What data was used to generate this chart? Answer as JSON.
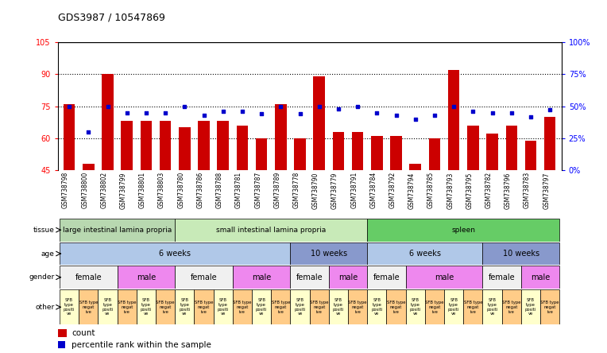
{
  "title": "GDS3987 / 10547869",
  "samples": [
    "GSM738798",
    "GSM738800",
    "GSM738802",
    "GSM738799",
    "GSM738801",
    "GSM738803",
    "GSM738780",
    "GSM738786",
    "GSM738788",
    "GSM738781",
    "GSM738787",
    "GSM738789",
    "GSM738778",
    "GSM738790",
    "GSM738779",
    "GSM738791",
    "GSM738784",
    "GSM738792",
    "GSM738794",
    "GSM738785",
    "GSM738793",
    "GSM738795",
    "GSM738782",
    "GSM738796",
    "GSM738783",
    "GSM738797"
  ],
  "counts": [
    76,
    48,
    90,
    68,
    68,
    68,
    65,
    68,
    68,
    66,
    60,
    76,
    60,
    89,
    63,
    63,
    61,
    61,
    48,
    60,
    92,
    66,
    62,
    66,
    59,
    70
  ],
  "percentile_ranks": [
    50,
    30,
    50,
    45,
    45,
    45,
    50,
    43,
    46,
    46,
    44,
    50,
    44,
    50,
    48,
    50,
    45,
    43,
    40,
    43,
    50,
    46,
    45,
    45,
    42,
    47
  ],
  "ylim_left": [
    45,
    105
  ],
  "ylim_right": [
    0,
    100
  ],
  "yticks_left": [
    45,
    60,
    75,
    90,
    105
  ],
  "yticks_right": [
    0,
    25,
    50,
    75,
    100
  ],
  "ytick_labels_right": [
    "0%",
    "25%",
    "50%",
    "75%",
    "100%"
  ],
  "bar_color": "#cc0000",
  "dot_color": "#0000cc",
  "tissue_groups_draw": [
    {
      "label": "large intestinal lamina propria",
      "start": 0,
      "end": 6,
      "color": "#b8d8b0"
    },
    {
      "label": "small intestinal lamina propria",
      "start": 6,
      "end": 16,
      "color": "#c8eab8"
    },
    {
      "label": "spleen",
      "start": 16,
      "end": 26,
      "color": "#66cc66"
    }
  ],
  "age_groups_draw": [
    {
      "label": "6 weeks",
      "start": 0,
      "end": 12,
      "color": "#b0c8e8"
    },
    {
      "label": "10 weeks",
      "start": 12,
      "end": 16,
      "color": "#8899cc"
    },
    {
      "label": "6 weeks",
      "start": 16,
      "end": 22,
      "color": "#b0c8e8"
    },
    {
      "label": "10 weeks",
      "start": 22,
      "end": 26,
      "color": "#8899cc"
    }
  ],
  "gender_groups_draw": [
    {
      "label": "female",
      "start": 0,
      "end": 3,
      "color": "#f0f0f0"
    },
    {
      "label": "male",
      "start": 3,
      "end": 6,
      "color": "#ee88ee"
    },
    {
      "label": "female",
      "start": 6,
      "end": 9,
      "color": "#f0f0f0"
    },
    {
      "label": "male",
      "start": 9,
      "end": 12,
      "color": "#ee88ee"
    },
    {
      "label": "female",
      "start": 12,
      "end": 14,
      "color": "#f0f0f0"
    },
    {
      "label": "male",
      "start": 14,
      "end": 16,
      "color": "#ee88ee"
    },
    {
      "label": "female",
      "start": 16,
      "end": 18,
      "color": "#f0f0f0"
    },
    {
      "label": "male",
      "start": 18,
      "end": 22,
      "color": "#ee88ee"
    },
    {
      "label": "female",
      "start": 22,
      "end": 24,
      "color": "#f0f0f0"
    },
    {
      "label": "male",
      "start": 24,
      "end": 26,
      "color": "#ee88ee"
    }
  ],
  "pos_color": "#ffffcc",
  "neg_color": "#ffcc88",
  "background_color": "#ffffff",
  "n_samples": 26
}
